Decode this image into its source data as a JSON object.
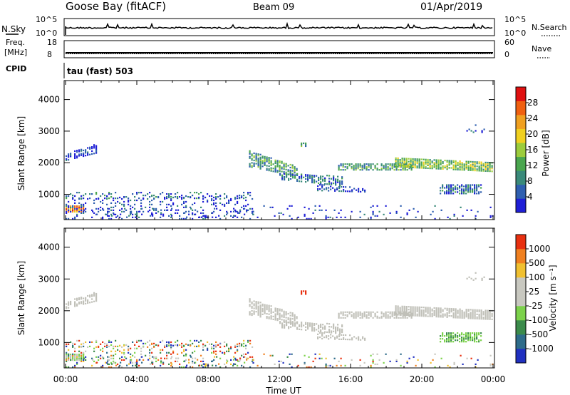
{
  "header": {
    "station": "Goose Bay (fitACF)",
    "beam": "Beam 09",
    "date": "01/Apr/2019"
  },
  "aux_panels": {
    "nsky_label": "N.Sky",
    "nsky_ticks": [
      "10^5",
      "10^0"
    ],
    "nsearch_label": "N.Search",
    "nsearch_ticks": [
      "10^5",
      "10^0"
    ],
    "freq_label_1": "Freq.",
    "freq_label_2": "[MHz]",
    "freq_ticks": [
      "18",
      "8"
    ],
    "nave_label": "Nave",
    "nave_ticks": [
      "60",
      "0"
    ],
    "cpid_label": "CPID",
    "cpid_value": "tau (fast) 503"
  },
  "chart_data": [
    {
      "type": "heatmap",
      "name": "power",
      "ylabel": "Slant Range [km]",
      "ylim": [
        200,
        4600
      ],
      "yticks": [
        "1000",
        "2000",
        "3000",
        "4000"
      ],
      "colorbar": {
        "label": "Power [dB]",
        "ticks": [
          "4",
          "8",
          "12",
          "16",
          "20",
          "24",
          "28"
        ],
        "colors": [
          "#1f1fd6",
          "#2f5fb0",
          "#3a8a7a",
          "#4aa64f",
          "#9ccc3c",
          "#f0d020",
          "#f0a020",
          "#f06010",
          "#e01010"
        ]
      }
    },
    {
      "type": "heatmap",
      "name": "velocity",
      "ylabel": "Slant Range [km]",
      "ylim": [
        200,
        4600
      ],
      "yticks": [
        "1000",
        "2000",
        "3000",
        "4000"
      ],
      "colorbar": {
        "label": "Velocity [m s⁻¹]",
        "ticks": [
          "1000",
          "500",
          "100",
          "25",
          "-25",
          "-100",
          "-500",
          "-1000"
        ],
        "colors": [
          "#2030c0",
          "#2e6c8a",
          "#3b8b4b",
          "#7cd24b",
          "#c8c8c0",
          "#c8c8c0",
          "#f0c030",
          "#f08020",
          "#e83010"
        ]
      },
      "xticks": [
        "00:00",
        "04:00",
        "08:00",
        "12:00",
        "16:00",
        "20:00",
        "00:00"
      ],
      "xlabel": "Time UT"
    }
  ],
  "colors": {
    "background": "#ffffff",
    "axes": "#000000",
    "gs_grey": "#c0c0b8"
  }
}
